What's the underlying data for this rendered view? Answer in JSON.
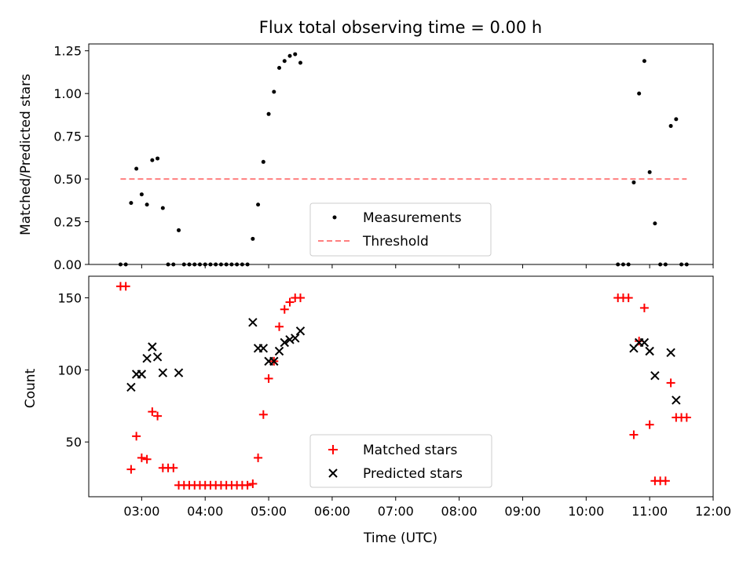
{
  "chart_data": [
    {
      "type": "scatter",
      "title": "Flux total observing time = 0.00 h",
      "xlabel": "",
      "ylabel": "Matched/Predicted stars",
      "ylim": [
        0,
        1.29
      ],
      "xlim": [
        "02:10",
        "12:00"
      ],
      "y_ticks": [
        "0.00",
        "0.25",
        "0.50",
        "0.75",
        "1.00",
        "1.25"
      ],
      "grid": false,
      "legend_position": "lower-center",
      "series": [
        {
          "name": "Measurements",
          "marker": "dot",
          "color": "#000000",
          "points": [
            [
              "02:40",
              0.0
            ],
            [
              "02:45",
              0.0
            ],
            [
              "02:50",
              0.36
            ],
            [
              "02:55",
              0.56
            ],
            [
              "03:00",
              0.41
            ],
            [
              "03:05",
              0.35
            ],
            [
              "03:10",
              0.61
            ],
            [
              "03:15",
              0.62
            ],
            [
              "03:20",
              0.33
            ],
            [
              "03:25",
              0.0
            ],
            [
              "03:30",
              0.0
            ],
            [
              "03:35",
              0.2
            ],
            [
              "03:40",
              0.0
            ],
            [
              "03:45",
              0.0
            ],
            [
              "03:50",
              0.0
            ],
            [
              "03:55",
              0.0
            ],
            [
              "04:00",
              0.0
            ],
            [
              "04:05",
              0.0
            ],
            [
              "04:10",
              0.0
            ],
            [
              "04:15",
              0.0
            ],
            [
              "04:20",
              0.0
            ],
            [
              "04:25",
              0.0
            ],
            [
              "04:30",
              0.0
            ],
            [
              "04:35",
              0.0
            ],
            [
              "04:40",
              0.0
            ],
            [
              "04:45",
              0.15
            ],
            [
              "04:50",
              0.35
            ],
            [
              "04:55",
              0.6
            ],
            [
              "05:00",
              0.88
            ],
            [
              "05:05",
              1.01
            ],
            [
              "05:10",
              1.15
            ],
            [
              "05:15",
              1.19
            ],
            [
              "05:20",
              1.22
            ],
            [
              "05:25",
              1.23
            ],
            [
              "05:30",
              1.18
            ],
            [
              "10:30",
              0.0
            ],
            [
              "10:35",
              0.0
            ],
            [
              "10:40",
              0.0
            ],
            [
              "10:45",
              0.48
            ],
            [
              "10:50",
              1.0
            ],
            [
              "10:55",
              1.19
            ],
            [
              "11:00",
              0.54
            ],
            [
              "11:05",
              0.24
            ],
            [
              "11:10",
              0.0
            ],
            [
              "11:15",
              0.0
            ],
            [
              "11:20",
              0.81
            ],
            [
              "11:25",
              0.85
            ],
            [
              "11:30",
              0.0
            ],
            [
              "11:35",
              0.0
            ]
          ]
        },
        {
          "name": "Threshold",
          "style": "dashed",
          "color": "#ff7f7f",
          "x": [
            "02:40",
            "11:35"
          ],
          "y": [
            0.5,
            0.5
          ]
        }
      ]
    },
    {
      "type": "scatter",
      "title": "",
      "xlabel": "Time (UTC)",
      "ylabel": "Count",
      "ylim": [
        12,
        165
      ],
      "xlim": [
        "02:10",
        "12:00"
      ],
      "x_ticks": [
        "03:00",
        "04:00",
        "05:00",
        "06:00",
        "07:00",
        "08:00",
        "09:00",
        "10:00",
        "11:00",
        "12:00"
      ],
      "y_ticks": [
        "50",
        "100",
        "150"
      ],
      "grid": false,
      "legend_position": "lower-center",
      "series": [
        {
          "name": "Matched stars",
          "marker": "plus",
          "color": "#ff0000",
          "points": [
            [
              "02:40",
              158
            ],
            [
              "02:45",
              158
            ],
            [
              "02:50",
              31
            ],
            [
              "02:55",
              54
            ],
            [
              "03:00",
              39
            ],
            [
              "03:05",
              38
            ],
            [
              "03:10",
              71
            ],
            [
              "03:15",
              68
            ],
            [
              "03:20",
              32
            ],
            [
              "03:25",
              32
            ],
            [
              "03:30",
              32
            ],
            [
              "03:35",
              20
            ],
            [
              "03:40",
              20
            ],
            [
              "03:45",
              20
            ],
            [
              "03:50",
              20
            ],
            [
              "03:55",
              20
            ],
            [
              "04:00",
              20
            ],
            [
              "04:05",
              20
            ],
            [
              "04:10",
              20
            ],
            [
              "04:15",
              20
            ],
            [
              "04:20",
              20
            ],
            [
              "04:25",
              20
            ],
            [
              "04:30",
              20
            ],
            [
              "04:35",
              20
            ],
            [
              "04:40",
              20
            ],
            [
              "04:45",
              21
            ],
            [
              "04:50",
              39
            ],
            [
              "04:55",
              69
            ],
            [
              "05:00",
              94
            ],
            [
              "05:05",
              106
            ],
            [
              "05:10",
              130
            ],
            [
              "05:15",
              142
            ],
            [
              "05:20",
              147
            ],
            [
              "05:25",
              150
            ],
            [
              "05:30",
              150
            ],
            [
              "10:30",
              150
            ],
            [
              "10:35",
              150
            ],
            [
              "10:40",
              150
            ],
            [
              "10:45",
              55
            ],
            [
              "10:50",
              120
            ],
            [
              "10:55",
              143
            ],
            [
              "11:00",
              62
            ],
            [
              "11:05",
              23
            ],
            [
              "11:10",
              23
            ],
            [
              "11:15",
              23
            ],
            [
              "11:20",
              91
            ],
            [
              "11:25",
              67
            ],
            [
              "11:30",
              67
            ],
            [
              "11:35",
              67
            ]
          ]
        },
        {
          "name": "Predicted stars",
          "marker": "x",
          "color": "#000000",
          "points": [
            [
              "02:50",
              88
            ],
            [
              "02:55",
              97
            ],
            [
              "03:00",
              97
            ],
            [
              "03:05",
              108
            ],
            [
              "03:10",
              116
            ],
            [
              "03:15",
              109
            ],
            [
              "03:20",
              98
            ],
            [
              "03:35",
              98
            ],
            [
              "04:45",
              133
            ],
            [
              "04:50",
              115
            ],
            [
              "04:55",
              115
            ],
            [
              "05:00",
              106
            ],
            [
              "05:05",
              106
            ],
            [
              "05:10",
              113
            ],
            [
              "05:15",
              119
            ],
            [
              "05:20",
              121
            ],
            [
              "05:25",
              122
            ],
            [
              "05:30",
              127
            ],
            [
              "10:45",
              115
            ],
            [
              "10:50",
              119
            ],
            [
              "10:55",
              119
            ],
            [
              "11:00",
              113
            ],
            [
              "11:05",
              96
            ],
            [
              "11:20",
              112
            ],
            [
              "11:25",
              79
            ]
          ]
        }
      ]
    }
  ]
}
